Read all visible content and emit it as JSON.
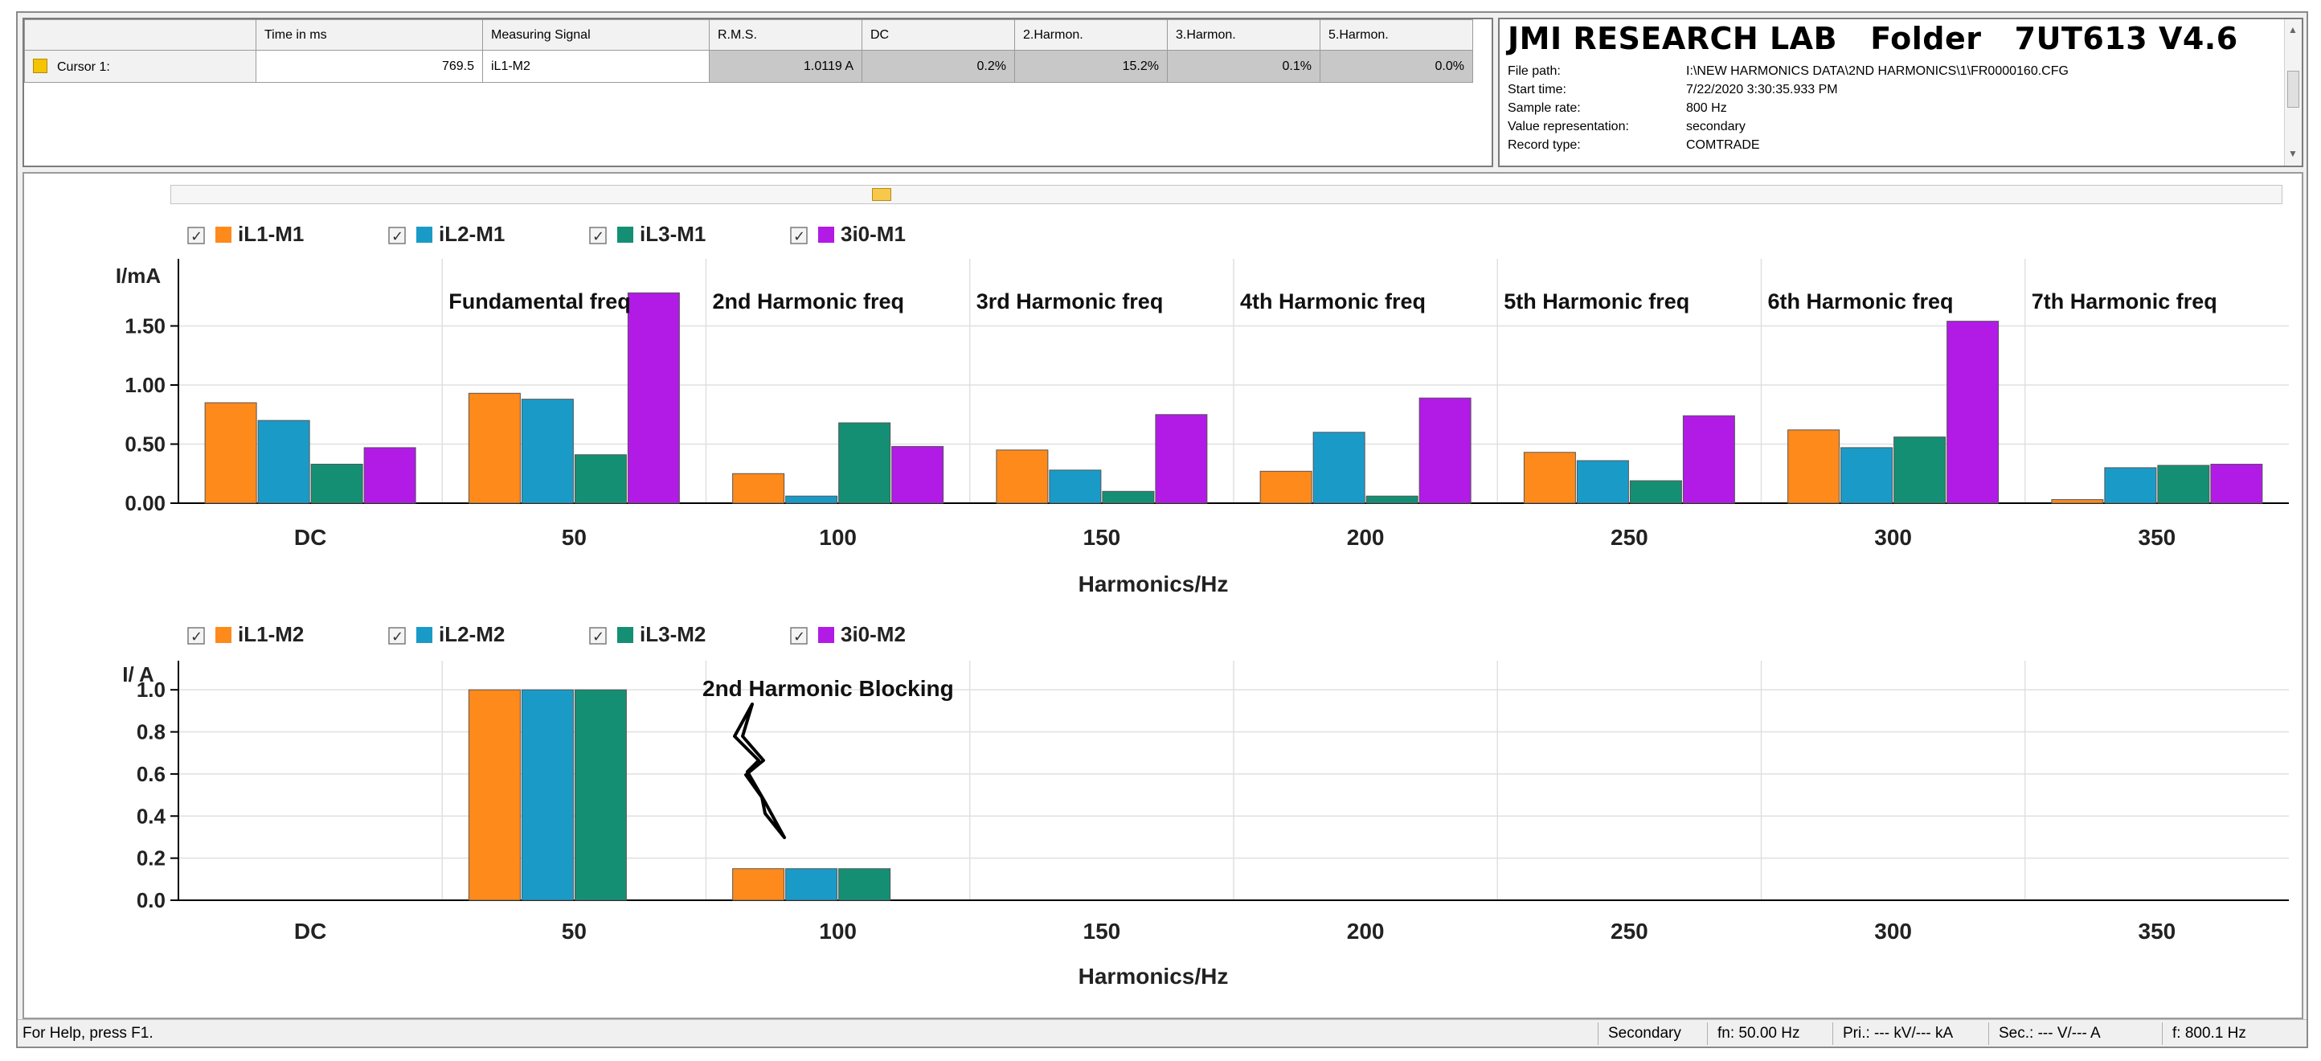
{
  "cursor_table": {
    "headers": [
      "",
      "Time in ms",
      "Measuring Signal",
      "R.M.S.",
      "DC",
      "2.Harmon.",
      "3.Harmon.",
      "5.Harmon."
    ],
    "row": {
      "label": "Cursor 1:",
      "time_ms": "769.5",
      "signal": "iL1-M2",
      "rms": "1.0119  A",
      "dc": "0.2%",
      "h2": "15.2%",
      "h3": "0.1%",
      "h5": "0.0%"
    },
    "swatch_color": "#f5c400"
  },
  "info": {
    "title": "JMI RESEARCH LAB   Folder   7UT613 V4.6",
    "rows": [
      {
        "key": "File path:",
        "value": "I:\\NEW HARMONICS DATA\\2ND HARMONICS\\1\\FR0000160.CFG"
      },
      {
        "key": "Start time:",
        "value": "7/22/2020 3:30:35.933 PM"
      },
      {
        "key": "Sample rate:",
        "value": "800 Hz"
      },
      {
        "key": "Value representation:",
        "value": "secondary"
      },
      {
        "key": "Record type:",
        "value": "COMTRADE"
      }
    ]
  },
  "colors": {
    "series1": "#ff8a1c",
    "series2": "#1a9bc7",
    "series3": "#158f73",
    "series4": "#b21ae6",
    "grid": "#e0e0e0",
    "axis": "#000000"
  },
  "chart_data": [
    {
      "type": "bar",
      "categories": [
        "DC",
        "50",
        "100",
        "150",
        "200",
        "250",
        "300",
        "350"
      ],
      "group_labels": [
        "",
        "Fundamental freq",
        "2nd Harmonic freq",
        "3rd Harmonic freq",
        "4th Harmonic freq",
        "5th Harmonic freq",
        "6th Harmonic freq",
        "7th Harmonic freq"
      ],
      "series": [
        {
          "name": "iL1-M1",
          "values": [
            0.85,
            0.93,
            0.25,
            0.45,
            0.27,
            0.43,
            0.62,
            0.03
          ]
        },
        {
          "name": "iL2-M1",
          "values": [
            0.7,
            0.88,
            0.06,
            0.28,
            0.6,
            0.36,
            0.47,
            0.3
          ]
        },
        {
          "name": "iL3-M1",
          "values": [
            0.33,
            0.41,
            0.68,
            0.1,
            0.06,
            0.19,
            0.56,
            0.32
          ]
        },
        {
          "name": "3i0-M1",
          "values": [
            0.47,
            1.78,
            0.48,
            0.75,
            0.89,
            0.74,
            1.54,
            0.33
          ]
        }
      ],
      "ylabel": "I/mA",
      "xlabel": "Harmonics/Hz",
      "yticks": [
        "0.00",
        "0.50",
        "1.00",
        "1.50"
      ],
      "ylim": [
        0,
        2.0
      ],
      "grid": true,
      "legend": "top-left"
    },
    {
      "type": "bar",
      "categories": [
        "DC",
        "50",
        "100",
        "150",
        "200",
        "250",
        "300",
        "350"
      ],
      "series": [
        {
          "name": "iL1-M2",
          "values": [
            0,
            1.0,
            0.15,
            0,
            0,
            0,
            0,
            0
          ]
        },
        {
          "name": "iL2-M2",
          "values": [
            0,
            1.0,
            0.15,
            0,
            0,
            0,
            0,
            0
          ]
        },
        {
          "name": "iL3-M2",
          "values": [
            0,
            1.0,
            0.15,
            0,
            0,
            0,
            0,
            0
          ]
        },
        {
          "name": "3i0-M2",
          "values": [
            0,
            0,
            0,
            0,
            0,
            0,
            0,
            0
          ]
        }
      ],
      "ylabel": "I/ A",
      "xlabel": "Harmonics/Hz",
      "yticks": [
        "0.0",
        "0.2",
        "0.4",
        "0.6",
        "0.8",
        "1.0"
      ],
      "ylim": [
        0,
        1.1
      ],
      "grid": true,
      "legend": "top-left",
      "annotation": "2nd Harmonic Blocking"
    }
  ],
  "status_bar": {
    "help": "For Help, press F1.",
    "mode": "Secondary",
    "fn": "fn: 50.00 Hz",
    "pri": "Pri.: --- kV/--- kA",
    "sec": "Sec.: --- V/--- A",
    "f": "f: 800.1  Hz"
  }
}
